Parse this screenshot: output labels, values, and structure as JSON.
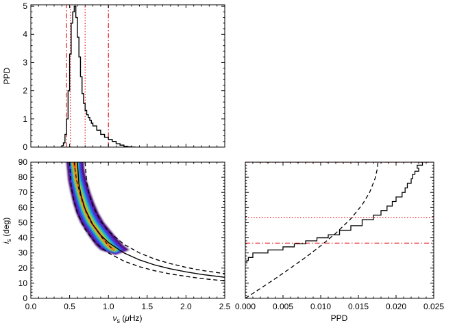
{
  "colors": {
    "axis": "#000000",
    "curve": "#000000",
    "marker_red": "#e8161b",
    "density_cmap": [
      "#3a0064",
      "#6a1bc5",
      "#2b4fe0",
      "#1aa6f0",
      "#22c7a0",
      "#7fd34a",
      "#f5e020",
      "#f5901e",
      "#e51a12"
    ]
  },
  "chart_data": [
    {
      "id": "top-marginal",
      "type": "line",
      "title": "",
      "xlabel": "",
      "ylabel": "PPD",
      "xlim": [
        0.0,
        2.5
      ],
      "ylim": [
        0,
        5.05
      ],
      "yticks": [
        0,
        1,
        2,
        3,
        4,
        5
      ],
      "xtick_labels_shown": false,
      "grid": false,
      "series": [
        {
          "style": "step",
          "x": [
            0.38,
            0.4,
            0.42,
            0.44,
            0.46,
            0.48,
            0.5,
            0.52,
            0.54,
            0.56,
            0.58,
            0.6,
            0.62,
            0.64,
            0.66,
            0.68,
            0.7,
            0.72,
            0.74,
            0.76,
            0.78,
            0.8,
            0.85,
            0.9,
            0.95,
            1.0,
            1.05,
            1.1,
            1.15,
            1.2,
            1.25,
            1.3,
            1.35
          ],
          "y": [
            0.0,
            0.05,
            0.15,
            0.45,
            1.0,
            2.0,
            3.3,
            4.4,
            4.8,
            5.0,
            4.6,
            3.9,
            3.2,
            2.5,
            1.9,
            1.55,
            1.3,
            1.15,
            1.05,
            0.95,
            0.85,
            0.75,
            0.6,
            0.45,
            0.35,
            0.27,
            0.2,
            0.12,
            0.07,
            0.03,
            0.01,
            0.0,
            0.0
          ]
        }
      ],
      "vertical_lines": [
        {
          "x": 0.46,
          "style": "dash-dot"
        },
        {
          "x": 0.51,
          "style": "dotted"
        },
        {
          "x": 0.7,
          "style": "dotted"
        },
        {
          "x": 1.0,
          "style": "dash-dot"
        }
      ]
    },
    {
      "id": "joint-density",
      "type": "heatmap",
      "title": "",
      "xlabel": "ν_s (μHz)",
      "ylabel": "i_s (deg)",
      "xlim": [
        0.0,
        2.5
      ],
      "ylim": [
        0,
        90
      ],
      "xticks": [
        "0.0",
        "0.5",
        "1.0",
        "1.5",
        "2.0",
        "2.5"
      ],
      "yticks": [
        0,
        10,
        20,
        30,
        40,
        50,
        60,
        70,
        80,
        90
      ],
      "grid": false,
      "density_ridge": {
        "x": [
          0.56,
          0.57,
          0.59,
          0.63,
          0.67,
          0.72,
          0.78,
          0.85,
          0.92,
          1.0,
          1.07
        ],
        "y": [
          90,
          85,
          78,
          70,
          63,
          56,
          50,
          45,
          40,
          35,
          32
        ]
      },
      "curves": [
        {
          "style": "solid",
          "v0": 0.6,
          "x": [
            0.6,
            0.62,
            0.65,
            0.7,
            0.8,
            0.9,
            1.0,
            1.2,
            1.4,
            1.6,
            1.8,
            2.0,
            2.2,
            2.5
          ],
          "y": [
            90,
            75.5,
            67.4,
            59.0,
            48.6,
            41.8,
            36.9,
            30.0,
            25.4,
            22.0,
            19.5,
            17.5,
            15.8,
            13.9
          ]
        },
        {
          "style": "dashed",
          "v0": 0.5,
          "x": [
            0.5,
            0.52,
            0.55,
            0.6,
            0.7,
            0.8,
            0.9,
            1.0,
            1.2,
            1.4,
            1.6,
            1.8,
            2.0,
            2.2,
            2.5
          ],
          "y": [
            90,
            74.1,
            65.4,
            56.4,
            45.6,
            38.7,
            33.7,
            30.0,
            24.6,
            20.9,
            18.2,
            16.1,
            14.5,
            13.1,
            11.5
          ]
        },
        {
          "style": "dashed",
          "v0": 0.7,
          "x": [
            0.7,
            0.72,
            0.75,
            0.8,
            0.9,
            1.0,
            1.2,
            1.4,
            1.6,
            1.8,
            2.0,
            2.2,
            2.5
          ],
          "y": [
            90,
            76.5,
            69.0,
            61.0,
            51.1,
            44.4,
            35.7,
            30.0,
            25.9,
            22.9,
            20.5,
            18.5,
            16.3
          ]
        }
      ]
    },
    {
      "id": "right-marginal",
      "type": "line",
      "title": "",
      "xlabel": "PPD",
      "ylabel": "",
      "xlim": [
        0.0,
        0.025
      ],
      "ylim": [
        0,
        90
      ],
      "xticks": [
        "0.000",
        "0.005",
        "0.010",
        "0.015",
        "0.020",
        "0.025"
      ],
      "ytick_labels_shown": false,
      "grid": false,
      "series": [
        {
          "style": "step",
          "x": [
            0.0002,
            0.0004,
            0.001,
            0.003,
            0.005,
            0.0065,
            0.008,
            0.0095,
            0.011,
            0.0125,
            0.014,
            0.0155,
            0.017,
            0.018,
            0.0188,
            0.0195,
            0.02,
            0.0208,
            0.0212,
            0.0215,
            0.022,
            0.0222,
            0.0225,
            0.023,
            0.0228,
            0.0235,
            0.0232,
            0.023
          ],
          "y": [
            23,
            25,
            27,
            30,
            32,
            34,
            36,
            38,
            40,
            42,
            45,
            48,
            52,
            55,
            58,
            61,
            64,
            67,
            70,
            73,
            76,
            79,
            82,
            84,
            86,
            88,
            90,
            91
          ]
        }
      ],
      "dashed_curve": {
        "x": [
          0.0,
          0.002,
          0.004,
          0.006,
          0.008,
          0.01,
          0.012,
          0.014,
          0.0155,
          0.0165,
          0.0172,
          0.0175,
          0.0176
        ],
        "y": [
          0,
          6.5,
          13.1,
          20.0,
          27.1,
          34.7,
          43.0,
          52.6,
          61.8,
          70.1,
          79.0,
          85.3,
          90
        ]
      },
      "horizontal_lines": [
        {
          "y": 36.5,
          "style": "dash-dot"
        },
        {
          "y": 53.5,
          "style": "dotted"
        },
        {
          "y": 90,
          "style": "dash-dot"
        }
      ]
    }
  ]
}
